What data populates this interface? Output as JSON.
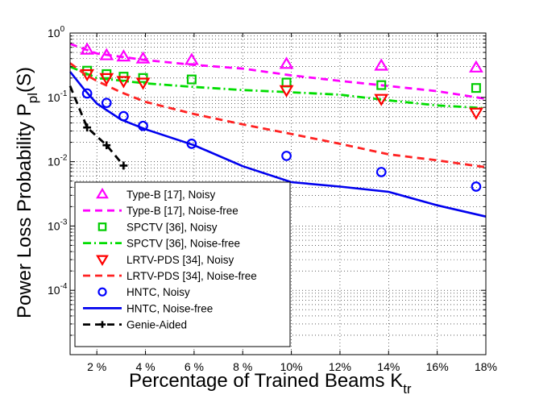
{
  "chart_data": {
    "type": "line",
    "x_scale": "linear",
    "y_scale": "log",
    "xlim": [
      0.9,
      18
    ],
    "ylim": [
      1e-05,
      1
    ],
    "grid": true,
    "grid_style": "dotted",
    "legend_position": "bottom-left",
    "xlabel": "Percentage of Trained Beams K",
    "xlabel_sub": "tr",
    "ylabel": "Power Loss Probability P",
    "ylabel_sub": "pl",
    "ylabel_suffix": "(S)",
    "x_ticks": [
      {
        "value": 2,
        "label": "2 %"
      },
      {
        "value": 4,
        "label": "4 %"
      },
      {
        "value": 6,
        "label": "6 %"
      },
      {
        "value": 8,
        "label": "8 %"
      },
      {
        "value": 10,
        "label": "10%"
      },
      {
        "value": 12,
        "label": "12%"
      },
      {
        "value": 14,
        "label": "14%"
      },
      {
        "value": 16,
        "label": "16%"
      },
      {
        "value": 18,
        "label": "18%"
      }
    ],
    "y_ticks": [
      {
        "value": 1,
        "base": "10",
        "exp": "0"
      },
      {
        "value": 0.1,
        "base": "10",
        "exp": "-1"
      },
      {
        "value": 0.01,
        "base": "10",
        "exp": "-2"
      },
      {
        "value": 0.001,
        "base": "10",
        "exp": "-3"
      },
      {
        "value": 0.0001,
        "base": "10",
        "exp": "-4"
      }
    ],
    "series": [
      {
        "name": "Type-B [17], Noisy",
        "style": "marker",
        "marker": "triangle-up",
        "color": "#ff00ff",
        "x": [
          1.6,
          2.4,
          3.1,
          3.9,
          5.9,
          9.8,
          13.7,
          17.6
        ],
        "y": [
          0.55,
          0.45,
          0.43,
          0.4,
          0.38,
          0.33,
          0.31,
          0.29
        ]
      },
      {
        "name": "Type-B [17], Noise-free",
        "style": "line",
        "dash": "dashed",
        "color": "#ff00ff",
        "x": [
          0.9,
          2,
          4,
          6,
          8,
          10,
          12,
          14,
          16,
          18
        ],
        "y": [
          0.68,
          0.48,
          0.38,
          0.32,
          0.28,
          0.22,
          0.18,
          0.15,
          0.125,
          0.095
        ]
      },
      {
        "name": "SPCTV [36], Noisy",
        "style": "marker",
        "marker": "square",
        "color": "#00cc00",
        "x": [
          1.6,
          2.4,
          3.1,
          3.9,
          5.9,
          9.8,
          13.7,
          17.6
        ],
        "y": [
          0.26,
          0.23,
          0.21,
          0.2,
          0.19,
          0.17,
          0.155,
          0.14
        ]
      },
      {
        "name": "SPCTV [36], Noise-free",
        "style": "line",
        "dash": "dash-dot",
        "color": "#00dd00",
        "x": [
          0.9,
          2,
          4,
          6,
          8,
          10,
          12,
          14,
          16,
          18
        ],
        "y": [
          0.3,
          0.2,
          0.165,
          0.145,
          0.13,
          0.12,
          0.11,
          0.09,
          0.075,
          0.068
        ]
      },
      {
        "name": "LRTV-PDS [34], Noisy",
        "style": "marker",
        "marker": "triangle-down",
        "color": "#ff0000",
        "x": [
          1.6,
          2.4,
          3.1,
          3.9,
          9.8,
          13.7,
          17.6
        ],
        "y": [
          0.23,
          0.2,
          0.18,
          0.17,
          0.13,
          0.095,
          0.058
        ]
      },
      {
        "name": "LRTV-PDS [34], Noise-free",
        "style": "line",
        "dash": "dashed",
        "color": "#ff2222",
        "x": [
          0.9,
          1.5,
          2,
          3,
          4,
          6,
          8,
          10,
          12,
          14,
          16,
          18
        ],
        "y": [
          0.34,
          0.23,
          0.18,
          0.12,
          0.085,
          0.055,
          0.038,
          0.027,
          0.019,
          0.013,
          0.0105,
          0.0082
        ]
      },
      {
        "name": "HNTC, Noisy",
        "style": "marker",
        "marker": "circle",
        "color": "#0000ff",
        "x": [
          1.6,
          2.4,
          3.1,
          3.9,
          5.9,
          9.8,
          13.7,
          17.6
        ],
        "y": [
          0.115,
          0.082,
          0.051,
          0.036,
          0.019,
          0.0123,
          0.0069,
          0.0041
        ]
      },
      {
        "name": "HNTC, Noise-free",
        "style": "line",
        "dash": "solid",
        "color": "#0000ee",
        "x": [
          0.9,
          1.5,
          2,
          3,
          4,
          6,
          8,
          10,
          12,
          14,
          16,
          18
        ],
        "y": [
          0.25,
          0.13,
          0.08,
          0.045,
          0.032,
          0.018,
          0.0085,
          0.0048,
          0.0041,
          0.0034,
          0.0021,
          0.0014
        ]
      },
      {
        "name": "Genie-Aided",
        "style": "line+marker",
        "dash": "dashed",
        "marker": "plus",
        "color": "#000000",
        "x": [
          0.9,
          1.6,
          2.4,
          3.1
        ],
        "y": [
          0.15,
          0.034,
          0.018,
          0.0087
        ]
      }
    ]
  }
}
